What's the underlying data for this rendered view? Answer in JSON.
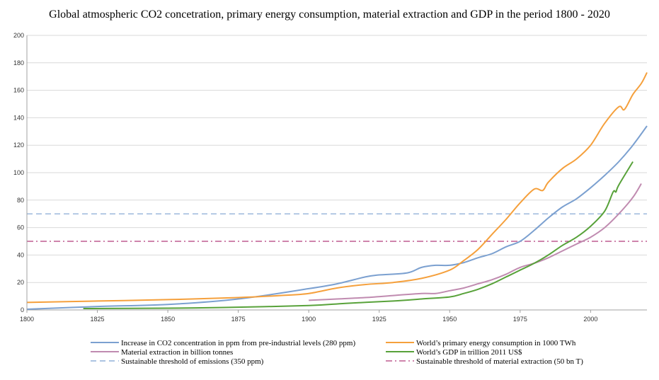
{
  "chart_data": {
    "type": "line",
    "title": "Global atmospheric CO2 concetration, primary energy consumption, material extraction and GDP in the period 1800 - 2020",
    "xlabel": "",
    "ylabel": "",
    "xlim": [
      1800,
      2020
    ],
    "ylim": [
      0,
      200
    ],
    "x_ticks": [
      1800,
      1825,
      1850,
      1875,
      1900,
      1925,
      1950,
      1975,
      2000
    ],
    "y_ticks": [
      0,
      20,
      40,
      60,
      80,
      100,
      120,
      140,
      160,
      180,
      200
    ],
    "grid": "horizontal",
    "legend_position": "bottom",
    "series": [
      {
        "name": "Increase in CO2 concentration in ppm from pre-industrial levels (280 ppm)",
        "color": "#7ba0d0",
        "dash": "solid",
        "points": [
          [
            1800,
            0.5
          ],
          [
            1825,
            2.5
          ],
          [
            1850,
            4
          ],
          [
            1875,
            8
          ],
          [
            1900,
            15.5
          ],
          [
            1910,
            19
          ],
          [
            1920,
            24
          ],
          [
            1925,
            25.5
          ],
          [
            1935,
            27
          ],
          [
            1940,
            31
          ],
          [
            1945,
            32.5
          ],
          [
            1950,
            32.5
          ],
          [
            1955,
            34.5
          ],
          [
            1960,
            38
          ],
          [
            1965,
            41
          ],
          [
            1970,
            46
          ],
          [
            1975,
            50
          ],
          [
            1980,
            58
          ],
          [
            1985,
            67
          ],
          [
            1990,
            75
          ],
          [
            1995,
            81
          ],
          [
            2000,
            89
          ],
          [
            2005,
            98
          ],
          [
            2010,
            108
          ],
          [
            2015,
            120
          ],
          [
            2020,
            134
          ]
        ]
      },
      {
        "name": "World’s primary energy consumption in 1000 TWh",
        "color": "#f5a03c",
        "dash": "solid",
        "points": [
          [
            1800,
            5.5
          ],
          [
            1825,
            6.5
          ],
          [
            1850,
            7.5
          ],
          [
            1875,
            9
          ],
          [
            1890,
            10.5
          ],
          [
            1900,
            12
          ],
          [
            1910,
            16
          ],
          [
            1920,
            18.5
          ],
          [
            1930,
            20
          ],
          [
            1940,
            23
          ],
          [
            1950,
            29
          ],
          [
            1955,
            36
          ],
          [
            1960,
            44
          ],
          [
            1965,
            55
          ],
          [
            1970,
            66
          ],
          [
            1975,
            78
          ],
          [
            1980,
            88
          ],
          [
            1983,
            87
          ],
          [
            1985,
            93
          ],
          [
            1990,
            103
          ],
          [
            1995,
            110
          ],
          [
            2000,
            120
          ],
          [
            2005,
            136
          ],
          [
            2010,
            148
          ],
          [
            2012,
            146
          ],
          [
            2015,
            157
          ],
          [
            2018,
            165
          ],
          [
            2020,
            173
          ]
        ]
      },
      {
        "name": "Material extraction in billion tonnes",
        "color": "#c08bb0",
        "dash": "solid",
        "points": [
          [
            1900,
            7
          ],
          [
            1910,
            8
          ],
          [
            1920,
            9
          ],
          [
            1930,
            10.5
          ],
          [
            1940,
            12
          ],
          [
            1945,
            12
          ],
          [
            1950,
            14
          ],
          [
            1955,
            16
          ],
          [
            1960,
            19
          ],
          [
            1965,
            22
          ],
          [
            1970,
            26
          ],
          [
            1975,
            31
          ],
          [
            1980,
            34
          ],
          [
            1985,
            38
          ],
          [
            1990,
            43
          ],
          [
            1995,
            48
          ],
          [
            2000,
            53
          ],
          [
            2005,
            60
          ],
          [
            2010,
            70
          ],
          [
            2015,
            82
          ],
          [
            2018,
            92
          ]
        ]
      },
      {
        "name": "World’s GDP in trillion 2011 US$",
        "color": "#58a23a",
        "dash": "solid",
        "points": [
          [
            1820,
            1
          ],
          [
            1850,
            1.3
          ],
          [
            1870,
            1.8
          ],
          [
            1900,
            3.2
          ],
          [
            1913,
            4.8
          ],
          [
            1930,
            6.5
          ],
          [
            1940,
            8
          ],
          [
            1950,
            9.5
          ],
          [
            1955,
            12
          ],
          [
            1960,
            15
          ],
          [
            1965,
            19
          ],
          [
            1970,
            24
          ],
          [
            1975,
            29
          ],
          [
            1980,
            34
          ],
          [
            1985,
            40
          ],
          [
            1990,
            47
          ],
          [
            1995,
            53
          ],
          [
            2000,
            61
          ],
          [
            2005,
            72
          ],
          [
            2008,
            86
          ],
          [
            2009,
            86
          ],
          [
            2010,
            91
          ],
          [
            2015,
            108
          ]
        ]
      },
      {
        "name": "Sustainable threshold of emissions (350 ppm)",
        "color": "#7ba0d0",
        "dash": "dashed",
        "points": [
          [
            1800,
            70
          ],
          [
            2020,
            70
          ]
        ]
      },
      {
        "name": "Sustainable threshold of material extraction (50 bn T)",
        "color": "#b23a7a",
        "dash": "dashdot",
        "points": [
          [
            1800,
            50
          ],
          [
            2020,
            50
          ]
        ]
      }
    ]
  }
}
